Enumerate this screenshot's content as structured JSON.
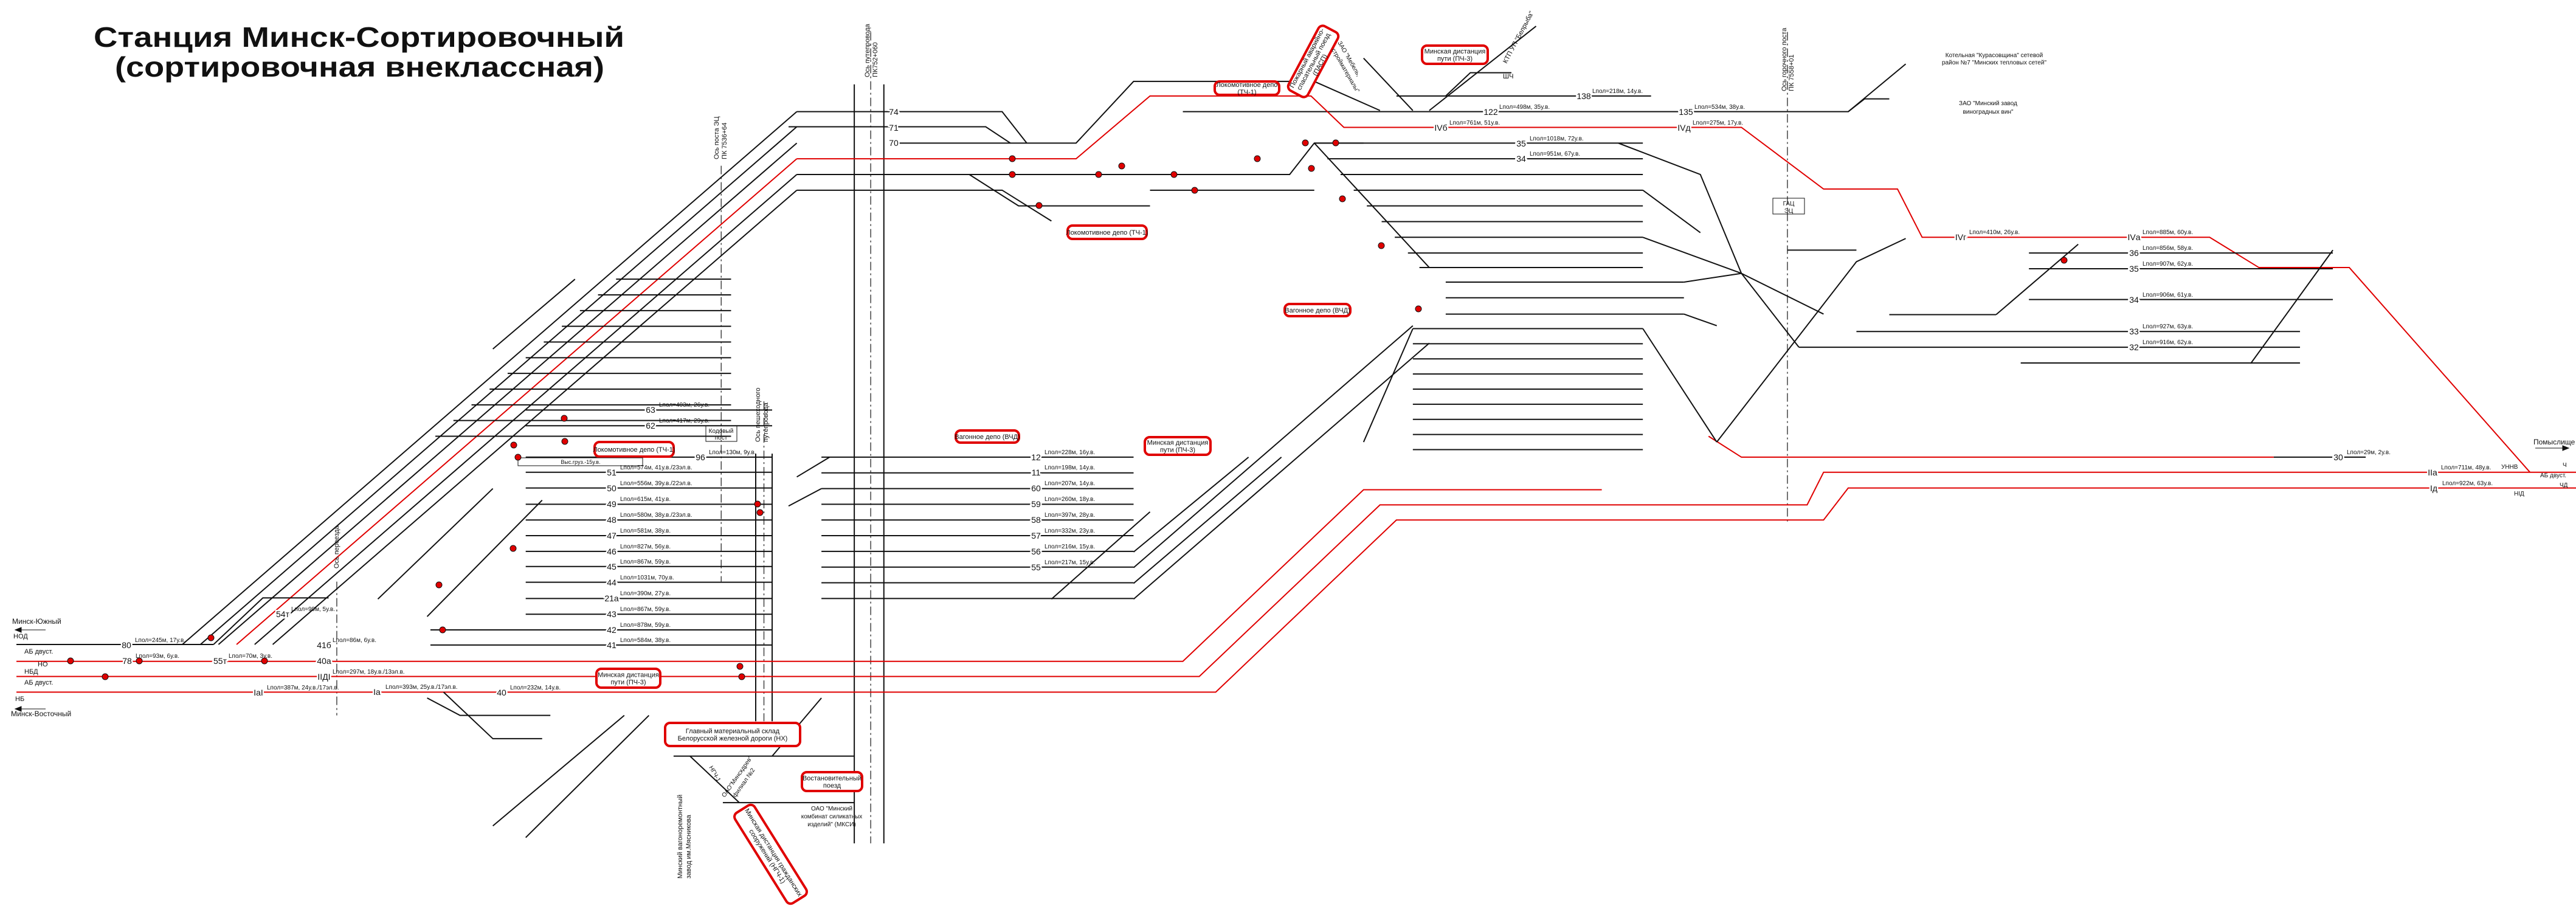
{
  "title": {
    "line1": "Станция Минск-Сортировочный",
    "line2": "(сортировочная внеклассная)"
  },
  "colors": {
    "main_track": "#e00000",
    "track": "#111111",
    "highlight_box": "#e00000",
    "signal": "#e00000"
  },
  "red_boxes": [
    {
      "lines": [
        "Пожарный аварийно-",
        "спасательный поезд",
        "(ПАСП)"
      ]
    },
    {
      "lines": [
        "Локомотивное депо",
        "(ТЧ-1)"
      ]
    },
    {
      "lines": [
        "Минская дистанция",
        "пути (ПЧ-3)"
      ]
    },
    {
      "lines": [
        "Локомотивное депо (ТЧ-1)"
      ]
    },
    {
      "lines": [
        "Вагонное депо (ВЧД)"
      ]
    },
    {
      "lines": [
        "Вагонное депо (ВЧД)"
      ]
    },
    {
      "lines": [
        "Минская дистанция",
        "пути (ПЧ-3)"
      ]
    },
    {
      "lines": [
        "Локомотивное депо (ТЧ-1)"
      ]
    },
    {
      "lines": [
        "Минская дистанция",
        "пути (ПЧ-3)"
      ]
    },
    {
      "lines": [
        "Главный материальный склад",
        "Белорусской железной дороги (НХ)"
      ]
    },
    {
      "lines": [
        "Востановительный",
        "поезд"
      ]
    },
    {
      "lines": [
        "Минская дистанция гражданских",
        "сооружений (НГЧ-1)"
      ]
    }
  ],
  "labels": [
    "Минск-Южный",
    "Минск-Восточный",
    "Помыслище",
    "Котельная \"Курасовщина\" сетевой",
    "район №7 \"Минских тепловых сетей\"",
    "ЗАО \"Минский завод",
    "виноградных вин\"",
    "Ось горочного поста",
    "ПК 7558+01",
    "Ось путепровода",
    "ПК752+060",
    "Ось поста ЭЦ",
    "ПК 7536+64",
    "Ось пешеходного",
    "путепровода",
    "Ось переезда",
    "Кодовый",
    "пост",
    "ГАЦ",
    "ЭЦ",
    "ШЧ",
    "КТП УП \"Белрыба\"",
    "ЗАО \"Мебель,",
    "стройматериалы\"",
    "ОАО \"Минский",
    "комбинат силикатных",
    "изделий\" (МКСИ)",
    "ОАО\"Минскдрев\"",
    "филиал №2",
    "Минский вагоноремонтный",
    "завод им.Мясникова",
    "НГЧ-1",
    "Выс.груз.-15у.в.",
    "НОД",
    "АБ двуст.",
    "НО",
    "НБД",
    "АБ двуст.",
    "НБ",
    "АБ двуст.",
    "Ч",
    "ЧД",
    "НIД",
    "УННВ"
  ],
  "tracks": [
    {
      "number": "80",
      "length": "Lпол=245м, 17у.в."
    },
    {
      "number": "78",
      "length": "Lпол=93м, 6у.в."
    },
    {
      "number": "55т",
      "length": "Lпол=70м, 3у.в."
    },
    {
      "number": "54т",
      "length": "Lпол=99м, 5у.в."
    },
    {
      "number": "41б",
      "length": "Lпол=86м, 6у.в."
    },
    {
      "number": "40а",
      "length": ""
    },
    {
      "number": "IIДI",
      "length": "Lпол=297м, 18у.в./13эл.в."
    },
    {
      "number": "IаI",
      "length": "Lпол=387м, 24у.в./17эл.в."
    },
    {
      "number": "Iа",
      "length": "Lпол=393м, 25у.в./17эл.в."
    },
    {
      "number": "63",
      "length": "Lпол=403м, 26у.в."
    },
    {
      "number": "62",
      "length": "Lпол=417м, 29у.в."
    },
    {
      "number": "96",
      "length": "Lпол=130м, 9у.в."
    },
    {
      "number": "51",
      "length": "Lпол=574м, 41у.в./23эл.в."
    },
    {
      "number": "50",
      "length": "Lпол=556м, 39у.в./22эл.в."
    },
    {
      "number": "49",
      "length": "Lпол=615м, 41у.в."
    },
    {
      "number": "48",
      "length": "Lпол=580м, 38у.в./23эл.в."
    },
    {
      "number": "47",
      "length": "Lпол=581м, 38у.в."
    },
    {
      "number": "46",
      "length": "Lпол=827м, 56у.в."
    },
    {
      "number": "45",
      "length": "Lпол=867м, 59у.в."
    },
    {
      "number": "44",
      "length": "Lпол=1031м, 70у.в."
    },
    {
      "number": "21а",
      "length": "Lпол=390м, 27у.в."
    },
    {
      "number": "43",
      "length": "Lпол=867м, 59у.в."
    },
    {
      "number": "42",
      "length": "Lпол=878м, 59у.в."
    },
    {
      "number": "41",
      "length": "Lпол=584м, 38у.в."
    },
    {
      "number": "40",
      "length": "Lпол=232м, 14у.в."
    },
    {
      "number": "12",
      "length": "Lпол=228м, 16у.в."
    },
    {
      "number": "11",
      "length": "Lпол=198м, 14у.в."
    },
    {
      "number": "60",
      "length": "Lпол=207м, 14у.в."
    },
    {
      "number": "59",
      "length": "Lпол=260м, 18у.в."
    },
    {
      "number": "58",
      "length": "Lпол=397м, 28у.в."
    },
    {
      "number": "57",
      "length": "Lпол=332м, 23у.в."
    },
    {
      "number": "56",
      "length": "Lпол=216м, 15у.в."
    },
    {
      "number": "55",
      "length": "Lпол=217м, 15у.в."
    },
    {
      "number": "74",
      "length": ""
    },
    {
      "number": "71",
      "length": ""
    },
    {
      "number": "70",
      "length": ""
    },
    {
      "number": "138",
      "length": "Lпол=218м, 14у.в."
    },
    {
      "number": "122",
      "length": "Lпол=498м, 35у.в."
    },
    {
      "number": "135",
      "length": "Lпол=534м, 38у.в."
    },
    {
      "number": "IVб",
      "length": "Lпол=761м, 51у.в."
    },
    {
      "number": "IVд",
      "length": "Lпол=275м, 17у.в."
    },
    {
      "number": "35",
      "length": "Lпол=1018м, 72у.в."
    },
    {
      "number": "34",
      "length": "Lпол=951м, 67у.в."
    },
    {
      "number": "IVг",
      "length": "Lпол=410м, 26у.в."
    },
    {
      "number": "IVа",
      "length": "Lпол=885м, 60у.в."
    },
    {
      "number": "36",
      "length": "Lпол=856м, 58у.в."
    },
    {
      "number": "35",
      "length": "Lпол=907м, 62у.в."
    },
    {
      "number": "34",
      "length": "Lпол=906м, 61у.в."
    },
    {
      "number": "33",
      "length": "Lпол=927м, 63у.в."
    },
    {
      "number": "32",
      "length": "Lпол=916м, 62у.в."
    },
    {
      "number": "30",
      "length": "Lпол=29м, 2у.в."
    },
    {
      "number": "IIа",
      "length": "Lпол=711м, 48у.в."
    },
    {
      "number": "Iд",
      "length": "Lпол=922м, 63у.в."
    }
  ]
}
